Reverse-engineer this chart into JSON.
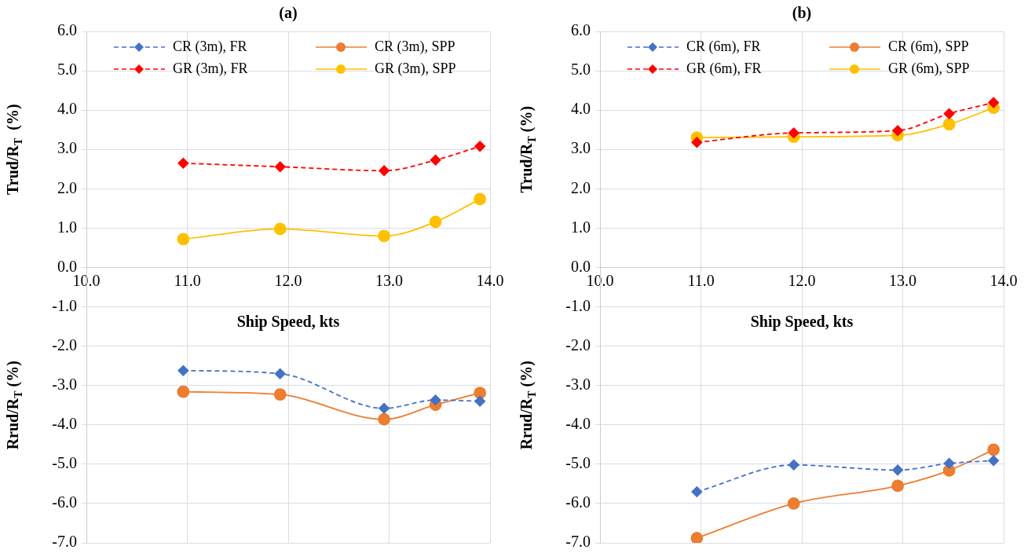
{
  "chart_data": [
    {
      "type": "line",
      "title": "(a)",
      "xlabel": "Ship Speed, kts",
      "ylabel": "Trud/R$_{T}$  (%)",
      "annotations": [
        "Rrud/R$_{T}$ (%)"
      ],
      "x": [
        10.96,
        11.92,
        12.95,
        13.46,
        13.9
      ],
      "series": [
        {
          "name": "CR (3m), FR",
          "color": "#4472c4",
          "values": [
            -2.62,
            -2.7,
            -3.58,
            -3.37,
            -3.4
          ],
          "marker": "diamond",
          "line_style": "dashed"
        },
        {
          "name": "CR (3m), SPP",
          "color": "#ed7d31",
          "values": [
            -3.16,
            -3.23,
            -3.86,
            -3.49,
            -3.19
          ],
          "marker": "circle",
          "line_style": "solid"
        },
        {
          "name": "GR (3m), FR",
          "color": "#ff0000",
          "values": [
            2.65,
            2.56,
            2.46,
            2.73,
            3.08
          ],
          "marker": "diamond",
          "line_style": "dashed"
        },
        {
          "name": "GR (3m), SPP",
          "color": "#ffc000",
          "values": [
            0.72,
            0.98,
            0.8,
            1.16,
            1.74
          ],
          "marker": "circle",
          "line_style": "solid"
        }
      ],
      "xlim": [
        10,
        14
      ],
      "xticks": [
        {
          "value": 10,
          "label": "10.0"
        },
        {
          "value": 11,
          "label": "11.0"
        },
        {
          "value": 12,
          "label": "12.0"
        },
        {
          "value": 13,
          "label": "13.0"
        },
        {
          "value": 14,
          "label": "14.0"
        }
      ],
      "ylim": [
        -7,
        6
      ],
      "yticks": [
        {
          "value": -7,
          "label": "-7.0"
        },
        {
          "value": -6,
          "label": "-6.0"
        },
        {
          "value": -5,
          "label": "-5.0"
        },
        {
          "value": -4,
          "label": "-4.0"
        },
        {
          "value": -3,
          "label": "-3.0"
        },
        {
          "value": -2,
          "label": "-2.0"
        },
        {
          "value": -1,
          "label": "-1.0"
        },
        {
          "value": 0,
          "label": "0.0"
        },
        {
          "value": 1,
          "label": "1.0"
        },
        {
          "value": 2,
          "label": "2.0"
        },
        {
          "value": 3,
          "label": "3.0"
        },
        {
          "value": 4,
          "label": "4.0"
        },
        {
          "value": 5,
          "label": "5.0"
        },
        {
          "value": 6,
          "label": "6.0"
        }
      ],
      "grid": true,
      "legend": "top"
    },
    {
      "type": "line",
      "title": "(b)",
      "xlabel": "Ship Speed, kts",
      "ylabel": "Trud/R$_{T}$ (%)",
      "annotations": [
        "Rrud/R$_{T}$ (%)"
      ],
      "x": [
        10.96,
        11.92,
        12.95,
        13.46,
        13.9
      ],
      "series": [
        {
          "name": "CR (6m), FR",
          "color": "#4472c4",
          "values": [
            -5.7,
            -5.02,
            -5.15,
            -4.98,
            -4.91
          ],
          "marker": "diamond",
          "line_style": "dashed"
        },
        {
          "name": "CR (6m), SPP",
          "color": "#ed7d31",
          "values": [
            -6.88,
            -6.0,
            -5.55,
            -5.16,
            -4.63
          ],
          "marker": "circle",
          "line_style": "solid"
        },
        {
          "name": "GR (6m), FR",
          "color": "#ff0000",
          "values": [
            3.18,
            3.42,
            3.48,
            3.91,
            4.19
          ],
          "marker": "diamond",
          "line_style": "dashed"
        },
        {
          "name": "GR (6m), SPP",
          "color": "#ffc000",
          "values": [
            3.3,
            3.32,
            3.36,
            3.64,
            4.06
          ],
          "marker": "circle",
          "line_style": "solid"
        }
      ],
      "xlim": [
        10,
        14
      ],
      "xticks": [
        {
          "value": 10,
          "label": "10.0"
        },
        {
          "value": 11,
          "label": "11.0"
        },
        {
          "value": 12,
          "label": "12.0"
        },
        {
          "value": 13,
          "label": "13.0"
        },
        {
          "value": 14,
          "label": "14.0"
        }
      ],
      "ylim": [
        -7,
        6
      ],
      "yticks": [
        {
          "value": -7,
          "label": "-7.0"
        },
        {
          "value": -6,
          "label": "-6.0"
        },
        {
          "value": -5,
          "label": "-5.0"
        },
        {
          "value": -4,
          "label": "-4.0"
        },
        {
          "value": -3,
          "label": "-3.0"
        },
        {
          "value": -2,
          "label": "-2.0"
        },
        {
          "value": -1,
          "label": "-1.0"
        },
        {
          "value": 0,
          "label": "0.0"
        },
        {
          "value": 1,
          "label": "1.0"
        },
        {
          "value": 2,
          "label": "2.0"
        },
        {
          "value": 3,
          "label": "3.0"
        },
        {
          "value": 4,
          "label": "4.0"
        },
        {
          "value": 5,
          "label": "5.0"
        },
        {
          "value": 6,
          "label": "6.0"
        }
      ],
      "grid": true,
      "legend": "top"
    }
  ]
}
